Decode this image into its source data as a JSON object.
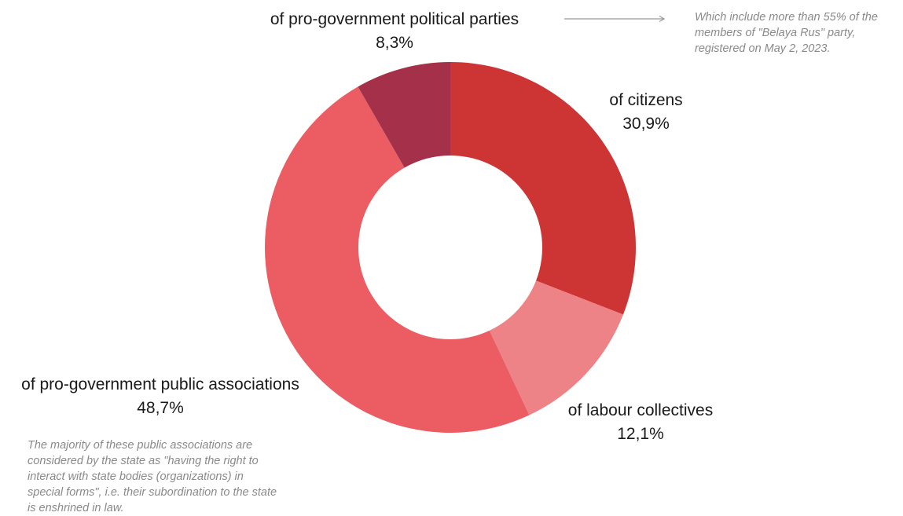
{
  "chart_data": {
    "type": "pie",
    "donut": true,
    "slices": [
      {
        "label": "of citizens",
        "value_text": "30,9%",
        "value": 30.9,
        "color": "#cd3535"
      },
      {
        "label": "of labour collectives",
        "value_text": "12,1%",
        "value": 12.1,
        "color": "#ee8387"
      },
      {
        "label": "of pro-government public associations",
        "value_text": "48,7%",
        "value": 48.7,
        "color": "#eb5c63"
      },
      {
        "label": "of pro-government political parties",
        "value_text": "8,3%",
        "value": 8.3,
        "color": "#a5304a"
      }
    ],
    "annotations": {
      "political_parties_note": [
        "Which include more than 55% of the",
        "members of \"Belaya Rus\" party,",
        "registered on May 2, 2023."
      ],
      "public_associations_note": [
        "The majority of these public associations are",
        "considered by the state as \"having the right to",
        "interact with state bodies (organizations) in",
        "special forms\", i.e. their subordination to the state",
        "is enshrined in law."
      ]
    }
  }
}
